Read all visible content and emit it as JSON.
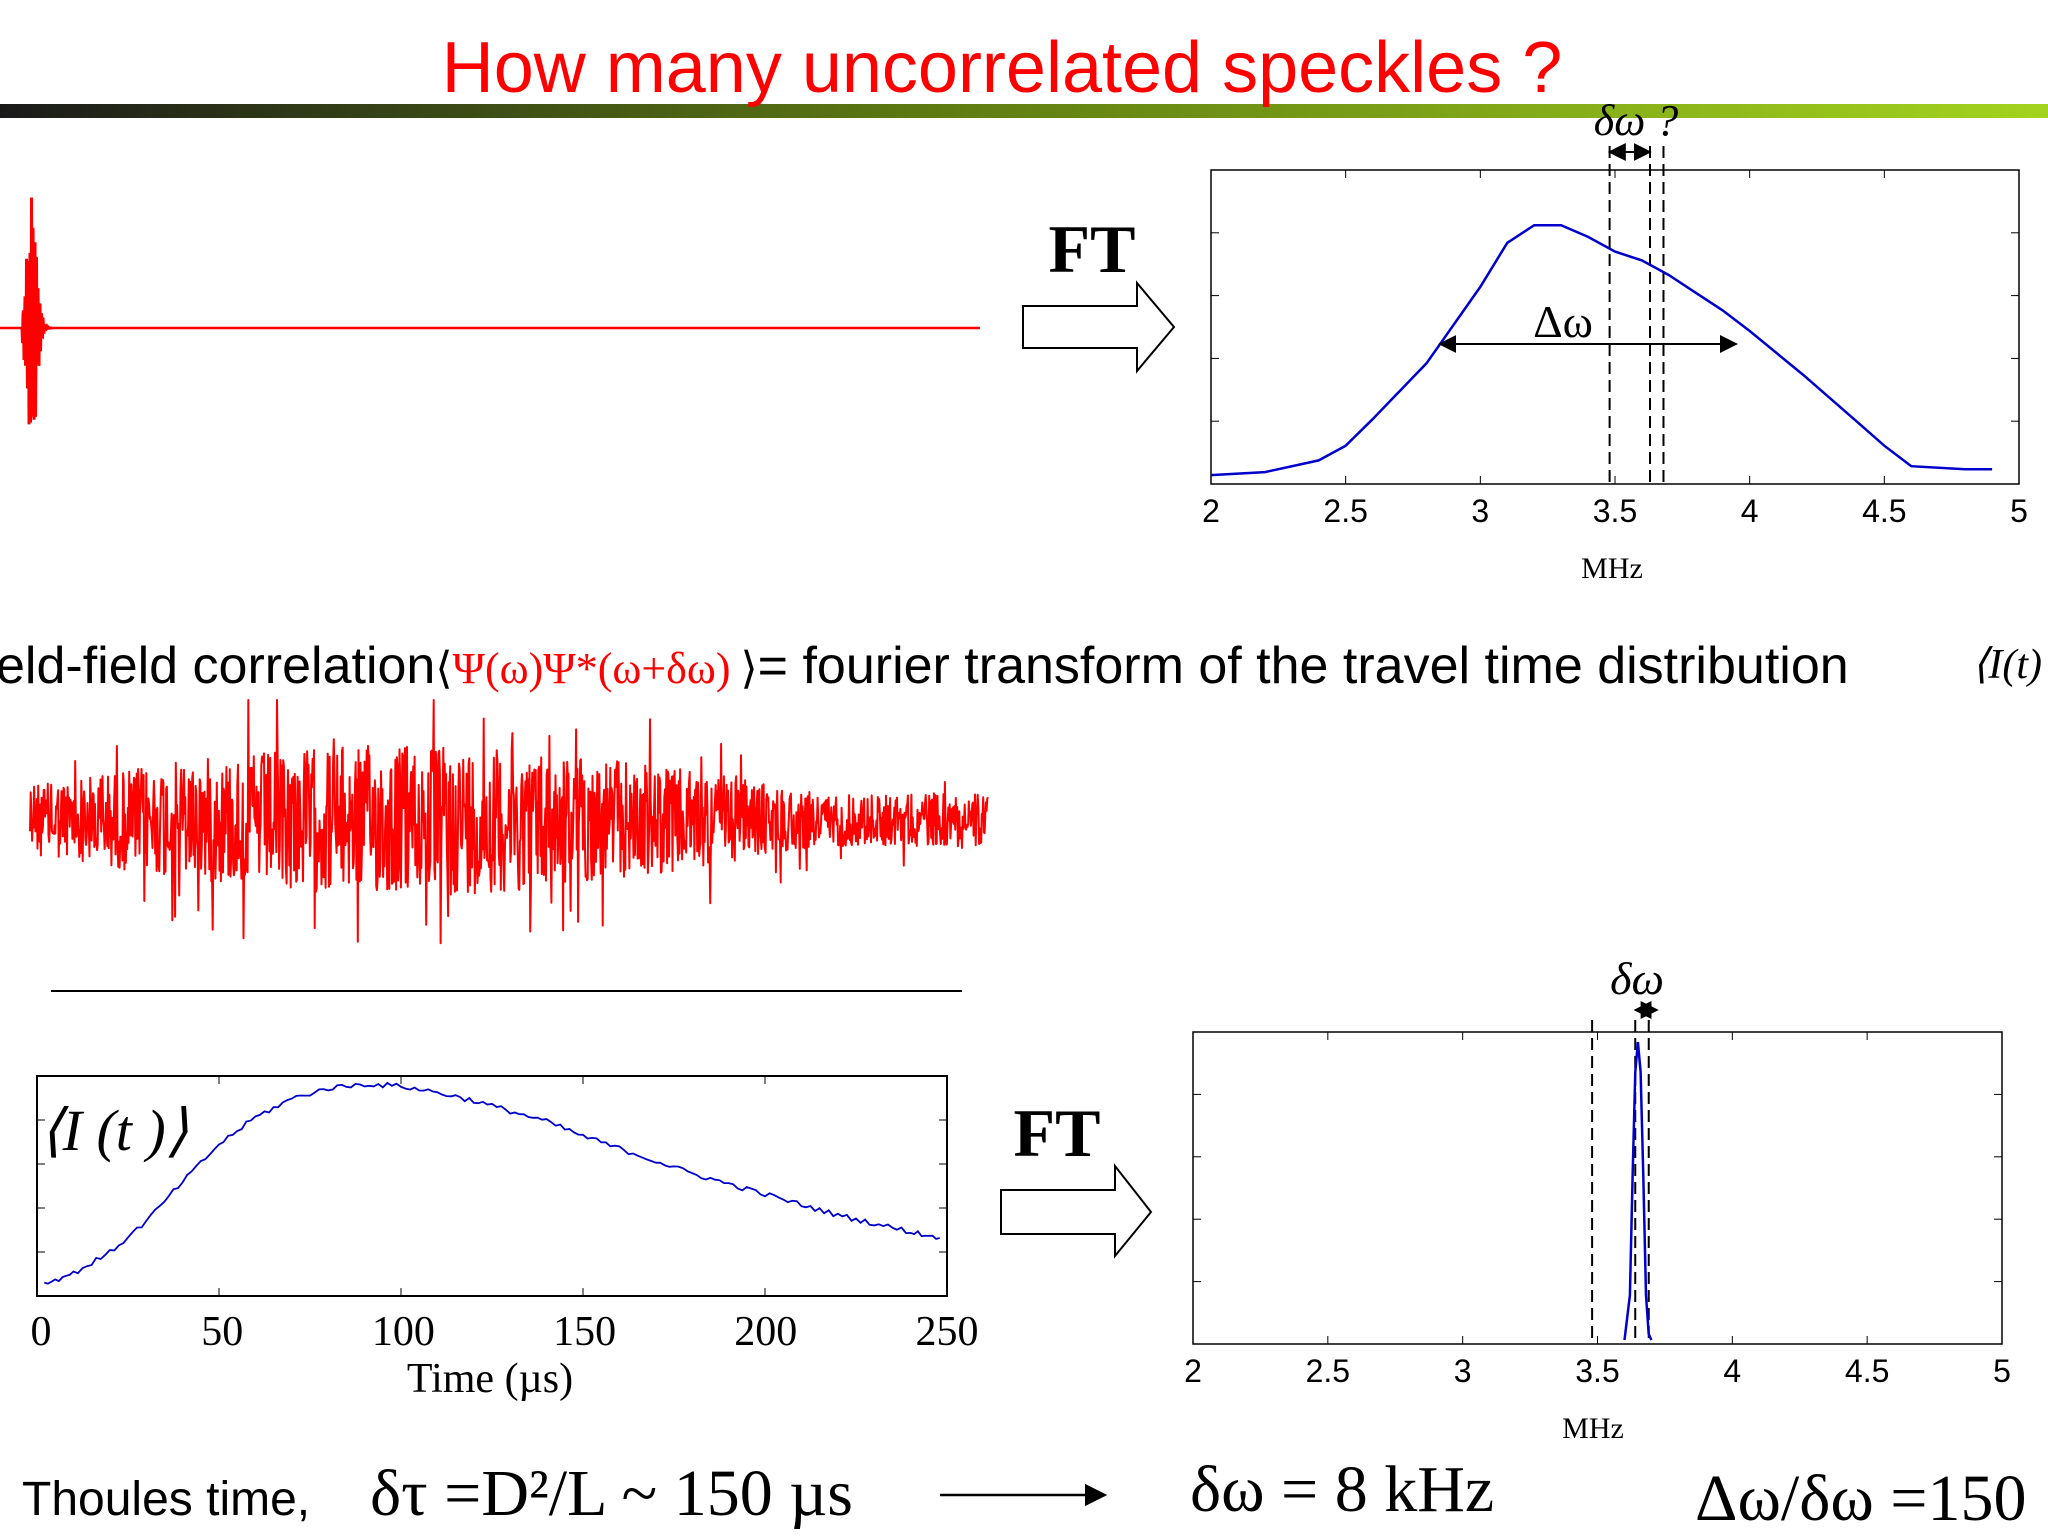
{
  "slide": {
    "title": "How many uncorrelated speckles ?",
    "colors": {
      "title": "#ff0000",
      "signal": "#ff0000",
      "curve": "#0000cc",
      "bar_start": "#1a1a1a",
      "bar_end": "#a4d31f"
    }
  },
  "top_panel": {
    "ft_label": "FT",
    "small_delta_label": "δω ?",
    "big_delta_label": "Δω",
    "xlabel": "MHz",
    "x_ticks": [
      "2",
      "2.5",
      "3",
      "3.5",
      "4",
      "4.5",
      "5"
    ]
  },
  "correlation_line": {
    "prefix": "eld-field correlation",
    "bra": "⟨",
    "psi_expr": "Ψ(ω)Ψ*(ω+δω)",
    "ket": "⟩",
    "suffix": "= fourier transform of the travel time distribution",
    "intensity_expr": "⟨I(t)"
  },
  "bottom_left": {
    "intensity_label": "⟨I (t )⟩",
    "x_ticks": [
      "0",
      "50",
      "100",
      "150",
      "200",
      "250"
    ],
    "xlabel": "Time (µs)"
  },
  "bottom_right": {
    "ft_label": "FT",
    "delta_label": "δω",
    "xlabel": "MHz",
    "x_ticks": [
      "2",
      "2.5",
      "3",
      "3.5",
      "4",
      "4.5",
      "5"
    ]
  },
  "footer": {
    "thoules_prefix": "Thoules time,",
    "thoules_expr": "δτ =D²/L ~ 150 µs",
    "delta_omega_value": "δω = 8 kHz",
    "ratio": "Δω/δω =150"
  },
  "chart_data": [
    {
      "type": "line",
      "title": "",
      "xlabel": "MHz",
      "ylabel": "",
      "xlim": [
        2,
        5
      ],
      "x_ticks": [
        2,
        2.5,
        3,
        3.5,
        4,
        4.5,
        5
      ],
      "series": [
        {
          "x": [
            2.0,
            2.2,
            2.4,
            2.5,
            2.6,
            2.8,
            3.0,
            3.1,
            3.2,
            3.3,
            3.4,
            3.5,
            3.6,
            3.7,
            3.8,
            3.9,
            4.0,
            4.2,
            4.4,
            4.5,
            4.6,
            4.8,
            4.9
          ],
          "y": [
            0.01,
            0.02,
            0.06,
            0.11,
            0.2,
            0.39,
            0.65,
            0.8,
            0.86,
            0.86,
            0.82,
            0.77,
            0.74,
            0.69,
            0.63,
            0.57,
            0.5,
            0.35,
            0.19,
            0.11,
            0.04,
            0.03,
            0.03
          ]
        }
      ],
      "markers": {
        "delta_omega_range": [
          2.85,
          3.95
        ],
        "dashed_lines": [
          3.48,
          3.63,
          3.68
        ]
      }
    },
    {
      "type": "line",
      "title": "",
      "xlabel": "Time (µs)",
      "ylabel": "",
      "xlim": [
        0,
        250
      ],
      "x_ticks": [
        0,
        50,
        100,
        150,
        200,
        250
      ],
      "series": [
        {
          "x": [
            2,
            10,
            20,
            30,
            40,
            50,
            60,
            70,
            80,
            90,
            100,
            110,
            120,
            130,
            140,
            150,
            160,
            170,
            180,
            190,
            200,
            210,
            220,
            230,
            240,
            248
          ],
          "y": [
            0.03,
            0.08,
            0.18,
            0.33,
            0.52,
            0.7,
            0.83,
            0.92,
            0.97,
            0.99,
            0.98,
            0.95,
            0.91,
            0.86,
            0.81,
            0.74,
            0.68,
            0.62,
            0.56,
            0.51,
            0.46,
            0.41,
            0.36,
            0.32,
            0.28,
            0.25
          ]
        }
      ]
    },
    {
      "type": "line",
      "title": "",
      "xlabel": "MHz",
      "ylabel": "",
      "xlim": [
        2,
        5
      ],
      "x_ticks": [
        2,
        2.5,
        3,
        3.5,
        4,
        4.5,
        5
      ],
      "series": [
        {
          "x": [
            3.6,
            3.62,
            3.63,
            3.64,
            3.65,
            3.66,
            3.67,
            3.68,
            3.69,
            3.7
          ],
          "y": [
            0.0,
            0.15,
            0.55,
            0.9,
            1.0,
            0.9,
            0.55,
            0.15,
            0.02,
            0.0
          ]
        }
      ],
      "markers": {
        "delta_omega_range": [
          3.64,
          3.72
        ],
        "dashed_lines": [
          3.48,
          3.64,
          3.69
        ]
      }
    }
  ]
}
